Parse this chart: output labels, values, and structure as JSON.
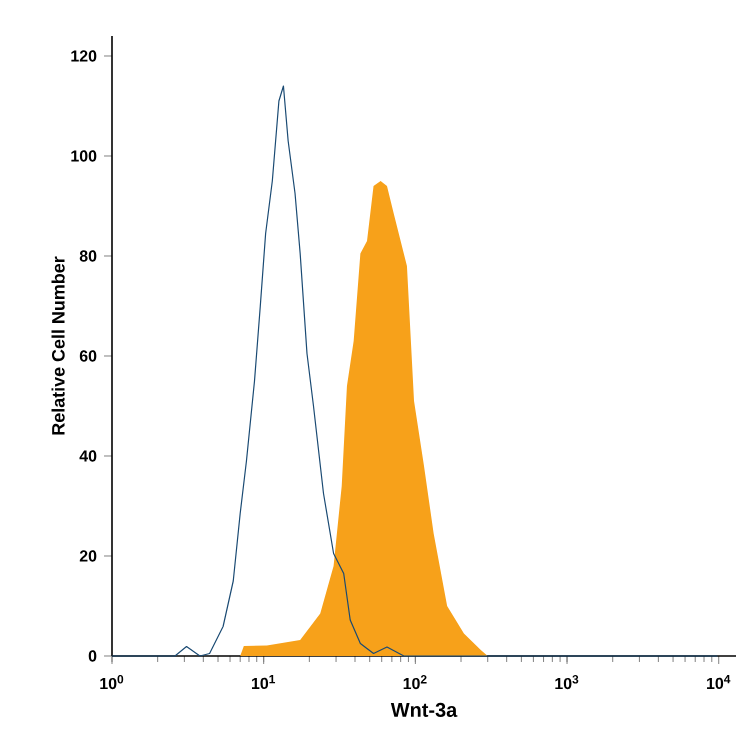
{
  "chart_data": {
    "type": "area",
    "xlabel": "Wnt-3a",
    "ylabel": "Relative Cell Number",
    "log": "x",
    "grid": false,
    "marker": "none",
    "xlim": [
      1,
      13000
    ],
    "ylim": [
      0,
      124
    ],
    "xticks": [
      {
        "value": 1,
        "label": "10$^{0}$"
      },
      {
        "value": 10,
        "label": "10$^{1}$"
      },
      {
        "value": 100,
        "label": "10$^{2}$"
      },
      {
        "value": 1000,
        "label": "10$^{3}$"
      },
      {
        "value": 10000,
        "label": "10$^{4}$"
      }
    ],
    "yticks": [
      0,
      20,
      40,
      60,
      80,
      100,
      120
    ],
    "series": [
      {
        "color": "#f7a11a",
        "x": [
          7.0,
          7.4,
          10.5,
          17.4,
          23.6,
          28.9,
          32.7,
          35.4,
          39.2,
          43.4,
          48,
          53,
          59,
          65,
          72,
          88,
          98,
          114,
          132,
          162,
          209,
          270,
          300
        ],
        "values": [
          0,
          2,
          2.1,
          3.2,
          8.5,
          18,
          34,
          54,
          63,
          80.5,
          83,
          94,
          95,
          94,
          88.5,
          78,
          51,
          38,
          24.5,
          10,
          4.5,
          1.2,
          0
        ]
      },
      {
        "type": "line",
        "color": "#1a4a73",
        "x": [
          1,
          2.6,
          3.1,
          3.8,
          4.4,
          5.4,
          6.3,
          7.0,
          7.7,
          8.7,
          9.5,
          10.3,
          11.4,
          12.6,
          13.5,
          14.5,
          16.1,
          17.4,
          19.3,
          21.3,
          24.8,
          28.9,
          33.7,
          37.2,
          43.4,
          53,
          65,
          76,
          84,
          9800
        ],
        "values": [
          0,
          0,
          1.9,
          0,
          0.5,
          5.9,
          15,
          28.5,
          39,
          55,
          70,
          84.5,
          95,
          111,
          114,
          103,
          92.5,
          80.5,
          60.5,
          50,
          32.5,
          20.5,
          16.5,
          7.2,
          2.5,
          0.5,
          1.8,
          0.7,
          0,
          0
        ]
      }
    ]
  }
}
